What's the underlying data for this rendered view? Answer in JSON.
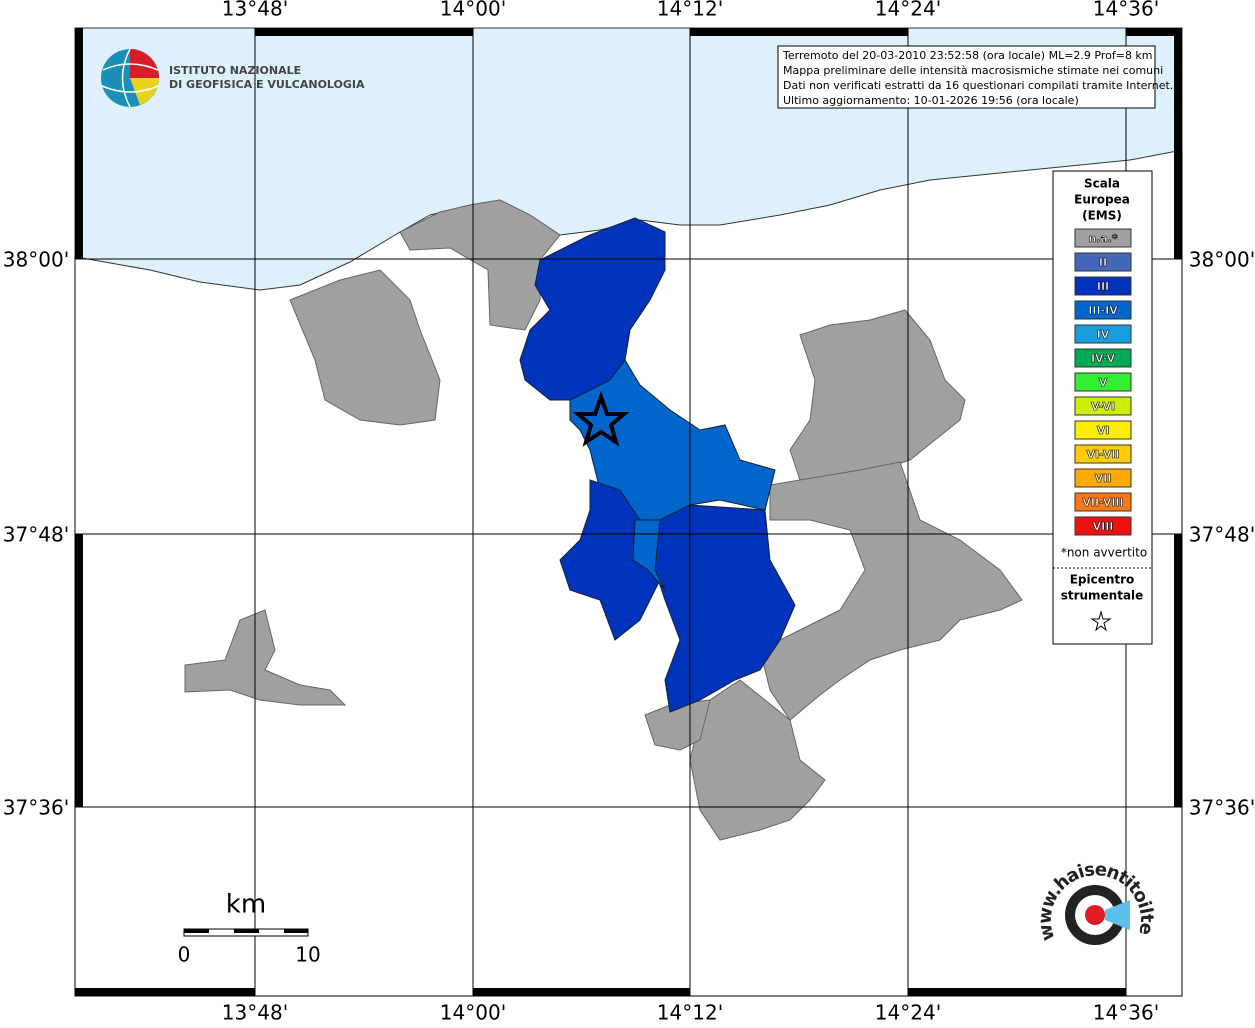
{
  "header": {
    "institute_line1": "ISTITUTO NAZIONALE",
    "institute_line2": "DI GEOFISICA E VULCANOLOGIA"
  },
  "info": [
    "Terremoto del 20-03-2010 23:52:58 (ora locale) ML=2.9 Prof=8 km",
    "Mappa preliminare delle intensità macrosismiche stimate nei comuni",
    "Dati non verificati estratti da 16 questionari compilati tramite Internet.",
    "Ultimo aggiornamento: 10-01-2026 19:56 (ora locale)"
  ],
  "map": {
    "lon_labels": [
      "13°48'",
      "14°00'",
      "14°12'",
      "14°24'",
      "14°36'"
    ],
    "lat_labels": [
      "38°00'",
      "37°48'",
      "37°36'"
    ]
  },
  "legend": {
    "title": [
      "Scala",
      "Europea",
      "(EMS)"
    ],
    "items": [
      {
        "label": "n.a.*",
        "color": "#a0a0a0"
      },
      {
        "label": "II",
        "color": "#4466bb"
      },
      {
        "label": "III",
        "color": "#0033bb"
      },
      {
        "label": "III-IV",
        "color": "#0066cc"
      },
      {
        "label": "IV",
        "color": "#1a9ddf"
      },
      {
        "label": "IV-V",
        "color": "#00aa55"
      },
      {
        "label": "V",
        "color": "#33ee33"
      },
      {
        "label": "V-VI",
        "color": "#ccee00"
      },
      {
        "label": "VI",
        "color": "#ffee00"
      },
      {
        "label": "VI-VII",
        "color": "#ffcc00"
      },
      {
        "label": "VII",
        "color": "#ffaa00"
      },
      {
        "label": "VII-VIII",
        "color": "#ff7711"
      },
      {
        "label": "VIII",
        "color": "#ee1111"
      }
    ],
    "note": "*non avvertito",
    "epicenter": [
      "Epicentro",
      "strumentale"
    ]
  },
  "scale_bar": {
    "unit": "km",
    "start": "0",
    "end": "10"
  },
  "footer_logo": {
    "text": "www.haisentitoilterremoto.it"
  }
}
